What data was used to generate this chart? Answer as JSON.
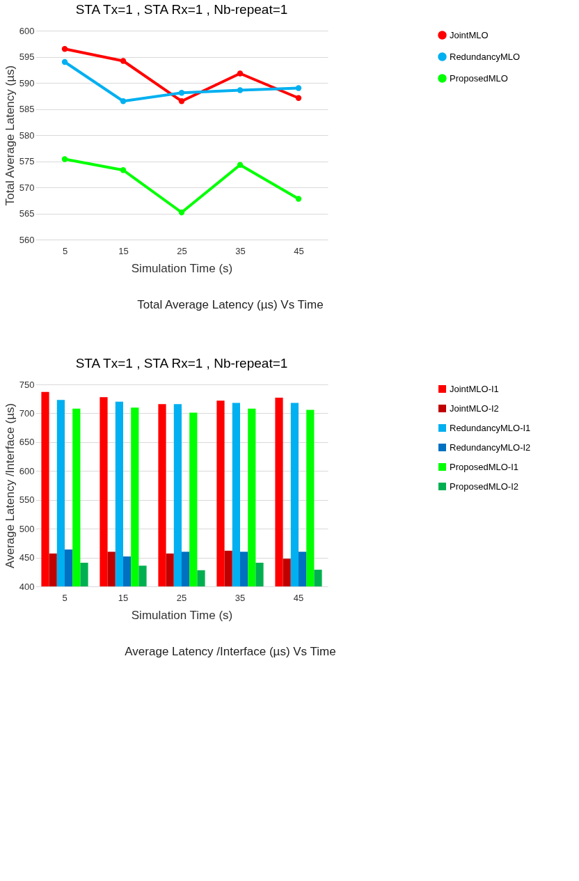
{
  "chart_data": [
    {
      "type": "line",
      "title": "STA Tx=1 , STA Rx=1 , Nb-repeat=1",
      "xlabel": "Simulation Time (s)",
      "ylabel": "Total Average Latency (µs)",
      "categories": [
        "5",
        "15",
        "25",
        "35",
        "45"
      ],
      "series": [
        {
          "name": "JointMLO",
          "color": "#ff0000",
          "values": [
            596.5,
            594.2,
            586.5,
            591.8,
            587.1
          ]
        },
        {
          "name": "RedundancyMLO",
          "color": "#00b0f0",
          "values": [
            594.0,
            586.5,
            588.1,
            588.6,
            589.0
          ]
        },
        {
          "name": "ProposedMLO",
          "color": "#00ff00",
          "values": [
            575.4,
            573.3,
            565.2,
            574.3,
            567.8
          ]
        }
      ],
      "ylim": [
        560,
        600
      ],
      "yticks": [
        560,
        565,
        570,
        575,
        580,
        585,
        590,
        595,
        600
      ],
      "grid": "y",
      "legend": "right",
      "marker": "circle",
      "annotations": [
        "Total Average Latency (µs) Vs Time"
      ]
    },
    {
      "type": "bar",
      "title": "STA Tx=1 , STA Rx=1 , Nb-repeat=1",
      "xlabel": "Simulation Time (s)",
      "ylabel": "Average Latency /Interface (µs)",
      "categories": [
        "5",
        "15",
        "25",
        "35",
        "45"
      ],
      "series": [
        {
          "name": "JointMLO-I1",
          "color": "#ff0000",
          "values": [
            737,
            728,
            716,
            722,
            727
          ]
        },
        {
          "name": "JointMLO-I2",
          "color": "#c00000",
          "values": [
            457,
            460,
            457,
            462,
            448
          ]
        },
        {
          "name": "RedundancyMLO-I1",
          "color": "#00b0f0",
          "values": [
            723,
            720,
            716,
            718,
            718
          ]
        },
        {
          "name": "RedundancyMLO-I2",
          "color": "#0070c0",
          "values": [
            464,
            452,
            460,
            460,
            460
          ]
        },
        {
          "name": "ProposedMLO-I1",
          "color": "#00ff00",
          "values": [
            708,
            710,
            701,
            708,
            706
          ]
        },
        {
          "name": "ProposedMLO-I2",
          "color": "#00b050",
          "values": [
            441,
            436,
            428,
            441,
            429
          ]
        }
      ],
      "ylim": [
        400,
        750
      ],
      "yticks": [
        400,
        450,
        500,
        550,
        600,
        650,
        700,
        750
      ],
      "grid": "y",
      "legend": "right",
      "annotations": [
        "Average Latency /Interface (µs) Vs Time"
      ]
    }
  ]
}
